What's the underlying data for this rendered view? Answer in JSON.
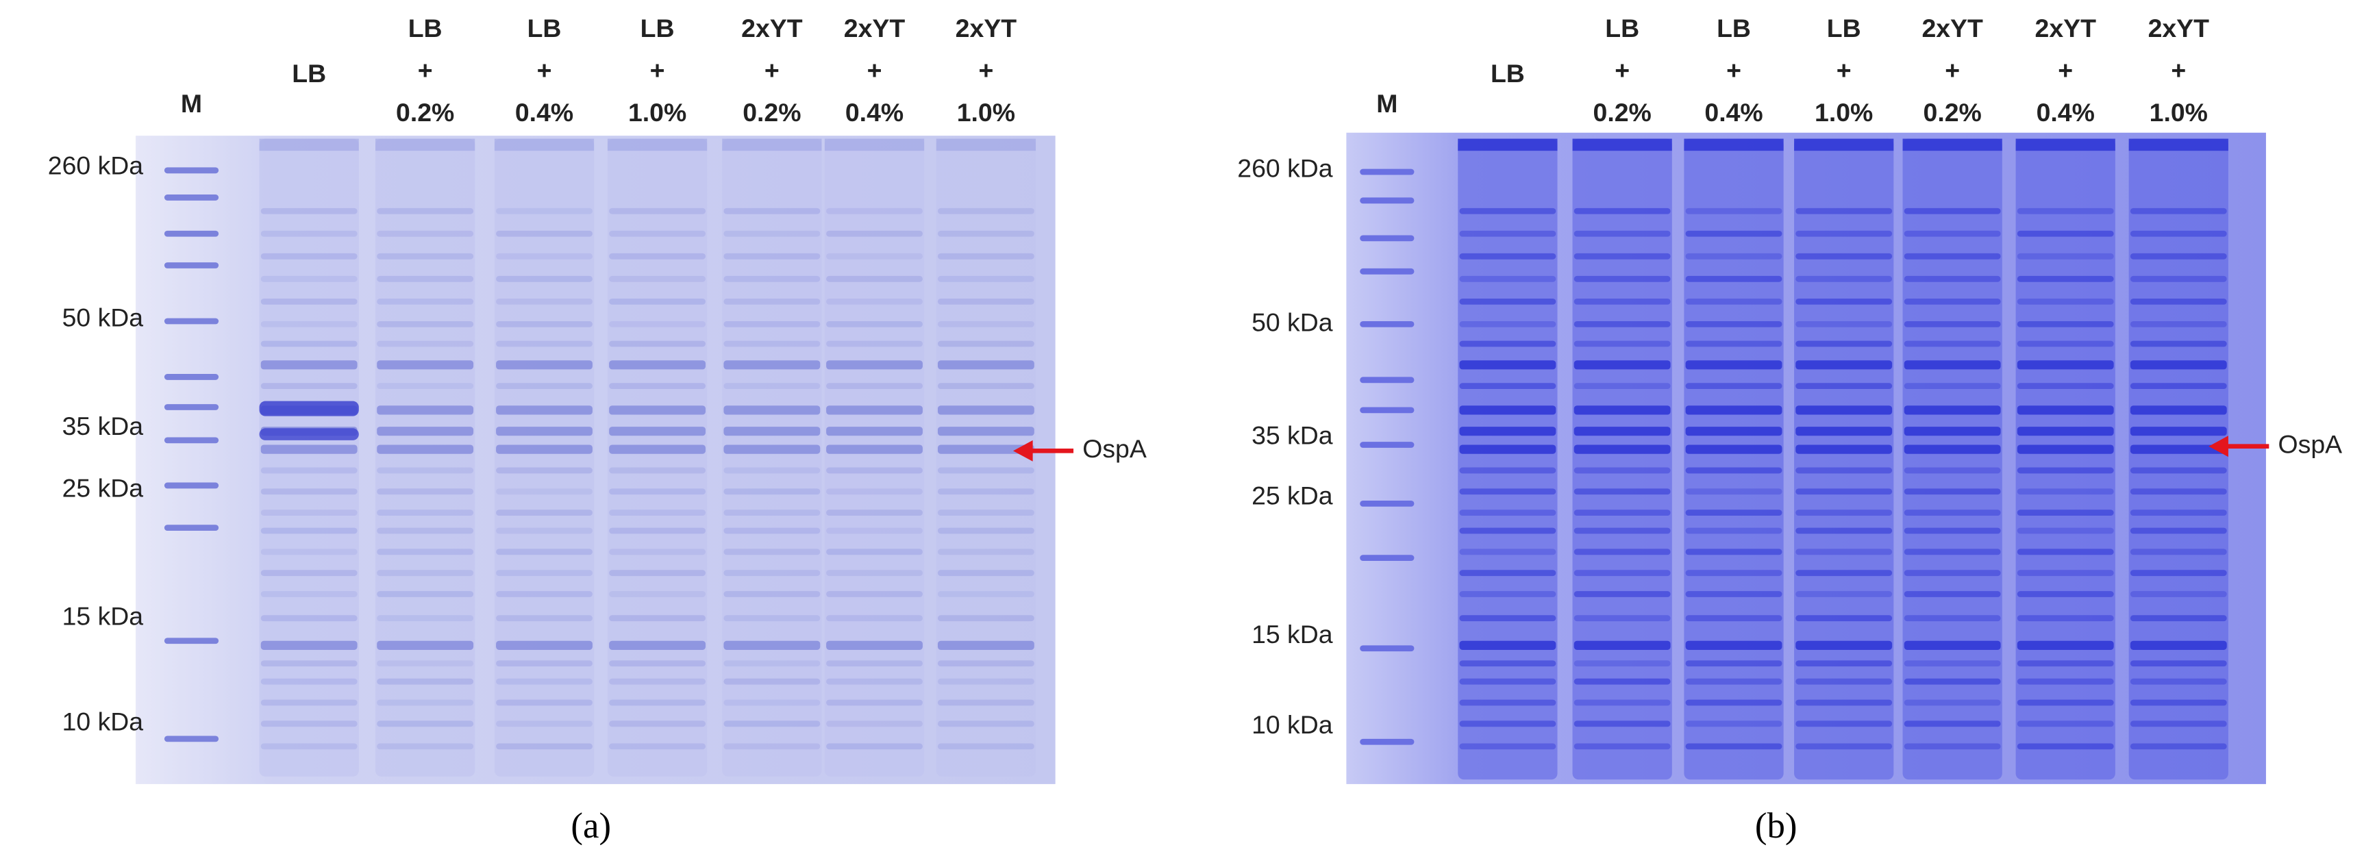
{
  "panels": [
    {
      "caption": "(a)",
      "lanes": [
        [
          "M"
        ],
        [
          "LB"
        ],
        [
          "LB",
          "+",
          "0.2%"
        ],
        [
          "LB",
          "+",
          "0.4%"
        ],
        [
          "LB",
          "+",
          "1.0%"
        ],
        [
          "2xYT",
          "+",
          "0.2%"
        ],
        [
          "2xYT",
          "+",
          "0.4%"
        ],
        [
          "2xYT",
          "+",
          "1.0%"
        ]
      ],
      "markers": [
        "260 kDa",
        "50 kDa",
        "35 kDa",
        "25 kDa",
        "15 kDa",
        "10 kDa"
      ],
      "annotation": "OspA"
    },
    {
      "caption": "(b)",
      "lanes": [
        [
          "M"
        ],
        [
          "LB"
        ],
        [
          "LB",
          "+",
          "0.2%"
        ],
        [
          "LB",
          "+",
          "0.4%"
        ],
        [
          "LB",
          "+",
          "1.0%"
        ],
        [
          "2xYT",
          "+",
          "0.2%"
        ],
        [
          "2xYT",
          "+",
          "0.4%"
        ],
        [
          "2xYT",
          "+",
          "1.0%"
        ]
      ],
      "markers": [
        "260 kDa",
        "50 kDa",
        "35 kDa",
        "25 kDa",
        "15 kDa",
        "10 kDa"
      ],
      "annotation": "OspA"
    }
  ]
}
